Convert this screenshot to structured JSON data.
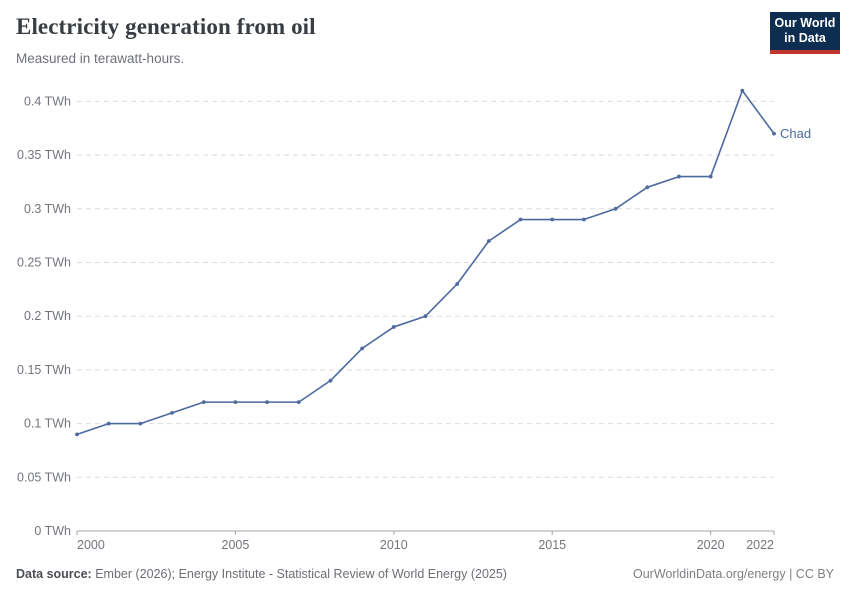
{
  "header": {
    "title": "Electricity generation from oil",
    "subtitle": "Measured in terawatt-hours.",
    "logo": {
      "line1": "Our World",
      "line2": "in Data"
    }
  },
  "chart_data": {
    "type": "line",
    "title": "Electricity generation from oil",
    "subtitle": "Measured in terawatt-hours.",
    "unit": "TWh",
    "x": [
      2000,
      2001,
      2002,
      2003,
      2004,
      2005,
      2006,
      2007,
      2008,
      2009,
      2010,
      2011,
      2012,
      2013,
      2014,
      2015,
      2016,
      2017,
      2018,
      2019,
      2020,
      2021,
      2022
    ],
    "series": [
      {
        "name": "Chad",
        "color": "#4d6a9e",
        "values": [
          0.09,
          0.1,
          0.1,
          0.11,
          0.12,
          0.12,
          0.12,
          0.12,
          0.14,
          0.17,
          0.19,
          0.2,
          0.23,
          0.27,
          0.29,
          0.29,
          0.29,
          0.3,
          0.32,
          0.33,
          0.33,
          0.41,
          0.37
        ]
      }
    ],
    "xlim": [
      2000,
      2022
    ],
    "ylim": [
      0,
      0.4
    ],
    "x_ticks": [
      {
        "value": 2000,
        "label": "2000",
        "align": "start"
      },
      {
        "value": 2005,
        "label": "2005",
        "align": "middle"
      },
      {
        "value": 2010,
        "label": "2010",
        "align": "middle"
      },
      {
        "value": 2015,
        "label": "2015",
        "align": "middle"
      },
      {
        "value": 2020,
        "label": "2020",
        "align": "middle"
      },
      {
        "value": 2022,
        "label": "2022",
        "align": "end"
      }
    ],
    "y_ticks": [
      {
        "value": 0,
        "label": "0 TWh"
      },
      {
        "value": 0.05,
        "label": "0.05 TWh"
      },
      {
        "value": 0.1,
        "label": "0.1 TWh"
      },
      {
        "value": 0.15,
        "label": "0.15 TWh"
      },
      {
        "value": 0.2,
        "label": "0.2 TWh"
      },
      {
        "value": 0.25,
        "label": "0.25 TWh"
      },
      {
        "value": 0.3,
        "label": "0.3 TWh"
      },
      {
        "value": 0.35,
        "label": "0.35 TWh"
      },
      {
        "value": 0.4,
        "label": "0.4 TWh"
      }
    ],
    "grid": "horizontal-dashed",
    "legend": "entity-label-at-line-end"
  },
  "colors": {
    "line": "#4d6a9e",
    "grid": "#dcdcdc",
    "axis": "#a5a5a5",
    "logo_bg": "#0d2d51",
    "logo_red": "#c0362c"
  },
  "footer": {
    "source_label": "Data source:",
    "source_text": " Ember (2026); Energy Institute - Statistical Review of World Energy (2025)",
    "link_text": "OurWorldinData.org/energy | CC BY"
  }
}
